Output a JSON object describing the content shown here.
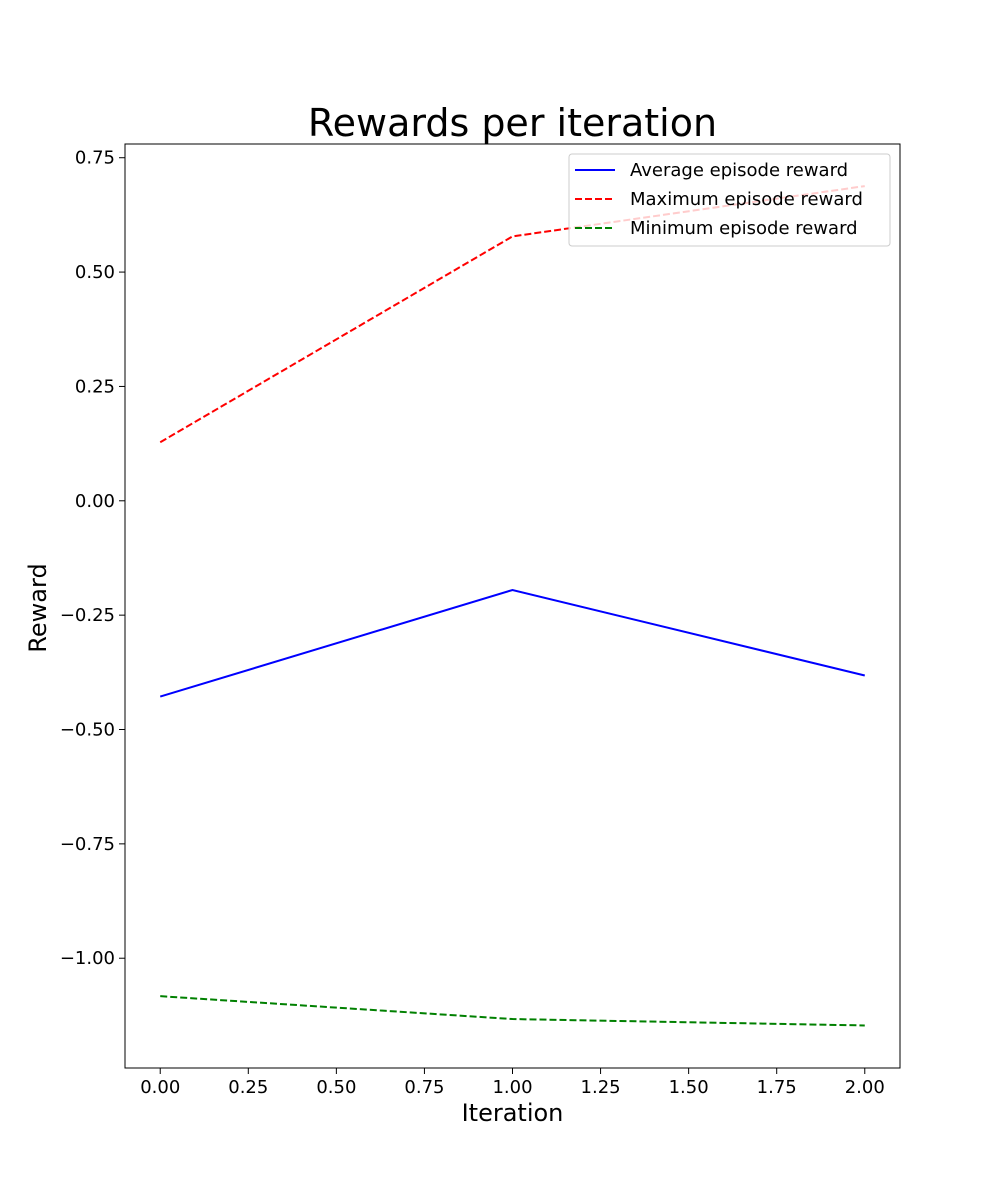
{
  "chart_data": {
    "type": "line",
    "title": "Rewards per iteration",
    "xlabel": "Iteration",
    "ylabel": "Reward",
    "x": [
      0,
      1,
      2
    ],
    "xlim": [
      -0.1,
      2.1
    ],
    "ylim": [
      -1.24,
      0.78
    ],
    "x_ticks": [
      0,
      0.25,
      0.5,
      0.75,
      1.0,
      1.25,
      1.5,
      1.75,
      2.0
    ],
    "x_tick_labels": [
      "0.00",
      "0.25",
      "0.50",
      "0.75",
      "1.00",
      "1.25",
      "1.50",
      "1.75",
      "2.00"
    ],
    "y_ticks": [
      0.75,
      0.5,
      0.25,
      0.0,
      -0.25,
      -0.5,
      -0.75,
      -1.0
    ],
    "y_tick_labels": [
      "0.75",
      "0.50",
      "0.25",
      "0.00",
      "−0.25",
      "−0.50",
      "−0.75",
      "−1.00"
    ],
    "grid": false,
    "legend_position": "top-right",
    "series": [
      {
        "name": "Average episode reward",
        "values": [
          -0.428,
          -0.195,
          -0.382
        ],
        "color": "#0000ff",
        "dash": "solid"
      },
      {
        "name": "Maximum episode reward",
        "values": [
          0.128,
          0.578,
          0.688
        ],
        "color": "#ff0000",
        "dash": "dashed"
      },
      {
        "name": "Minimum episode reward",
        "values": [
          -1.083,
          -1.133,
          -1.147
        ],
        "color": "#008000",
        "dash": "dashed"
      }
    ]
  }
}
